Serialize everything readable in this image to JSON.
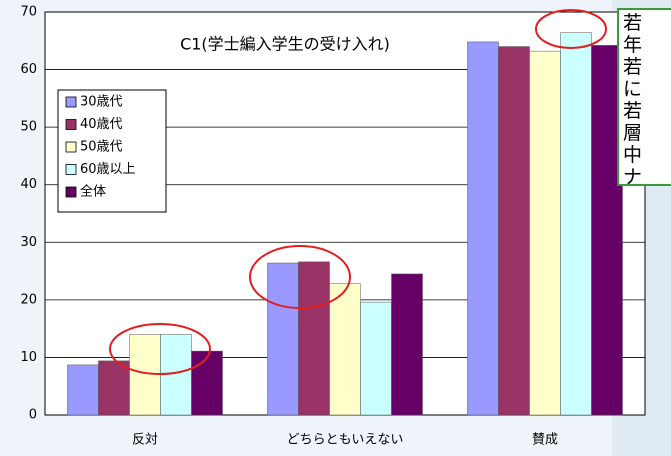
{
  "chart_data": {
    "type": "bar",
    "title": "C1(学士編入学生の受け入れ)",
    "categories": [
      "反対",
      "どちらともいえない",
      "賛成"
    ],
    "series": [
      {
        "name": "30歳代",
        "color": "#9999ff",
        "values": [
          8.7,
          26.4,
          64.8
        ]
      },
      {
        "name": "40歳代",
        "color": "#993366",
        "values": [
          9.4,
          26.6,
          64.0
        ]
      },
      {
        "name": "50歳代",
        "color": "#ffffcc",
        "values": [
          14.0,
          22.8,
          63.2
        ]
      },
      {
        "name": "60歳以上",
        "color": "#ccffff",
        "values": [
          14.0,
          19.6,
          66.4
        ]
      },
      {
        "name": "全体",
        "color": "#660066",
        "values": [
          11.1,
          24.5,
          64.2
        ]
      }
    ],
    "ylim": [
      0,
      70
    ],
    "yticks": [
      0,
      10,
      20,
      30,
      40,
      50,
      60,
      70
    ],
    "grid": true,
    "legend": "upper left"
  },
  "note": {
    "lines": [
      "若",
      "年",
      "若",
      "に",
      "若",
      "層",
      "中",
      "ナ"
    ]
  }
}
